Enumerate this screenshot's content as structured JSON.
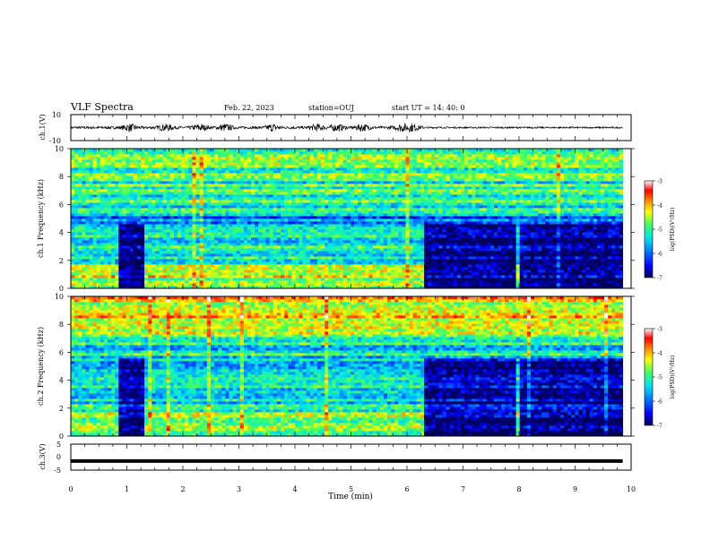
{
  "header": {
    "title": "VLF Spectra",
    "date": "Feb. 22, 2023",
    "station": "station=OUJ",
    "start_ut": "start  UT =   14: 40: 0"
  },
  "chart_data": [
    {
      "type": "line",
      "panel": "waveform-ch1",
      "ylabel": "ch.1(V)",
      "ylim": [
        -10,
        10
      ],
      "yticks": [
        "10",
        "-10"
      ],
      "xlim": [
        0,
        10
      ],
      "note": "broadband waveform, amplitude mostly within about ±2 V with bursts up to about ±4 V"
    },
    {
      "type": "heatmap",
      "panel": "spectrogram-ch1",
      "ylabel": "ch.1\nFrequency  (kHz)",
      "ylim": [
        0,
        10
      ],
      "yticks": [
        "0",
        "2",
        "4",
        "6",
        "8",
        "10"
      ],
      "xlim": [
        0,
        10
      ],
      "colorbar": {
        "label": "log(PSD)(V²/Hz)",
        "range": [
          -7,
          -3
        ],
        "ticks": [
          "-3",
          "-4",
          "-5",
          "-6",
          "-7"
        ],
        "colormap": [
          "#00007a",
          "#0000ff",
          "#0080ff",
          "#00e0ff",
          "#40ff80",
          "#ffff00",
          "#ff8000",
          "#ff0000",
          "#ffffff"
        ]
      },
      "data_end_min": 9.85
    },
    {
      "type": "heatmap",
      "panel": "spectrogram-ch2",
      "ylabel": "ch.2\nFrequency  (kHz)",
      "ylim": [
        0,
        10
      ],
      "yticks": [
        "0",
        "2",
        "4",
        "6",
        "8",
        "10"
      ],
      "xlim": [
        0,
        10
      ],
      "colorbar": {
        "label": "log(PSD)(V²/Hz)",
        "range": [
          -7,
          -3
        ],
        "ticks": [
          "-3",
          "-4",
          "-5",
          "-6",
          "-7"
        ],
        "colormap": [
          "#00007a",
          "#0000ff",
          "#0080ff",
          "#00e0ff",
          "#40ff80",
          "#ffff00",
          "#ff8000",
          "#ff0000",
          "#ffffff"
        ]
      },
      "data_end_min": 9.85
    },
    {
      "type": "line",
      "panel": "waveform-ch3",
      "ylabel": "ch.3(V)",
      "ylim": [
        -5,
        5
      ],
      "yticks": [
        "5",
        "0",
        "-5"
      ],
      "xlim": [
        0,
        10
      ],
      "xticks": [
        "0",
        "1",
        "2",
        "3",
        "4",
        "5",
        "6",
        "7",
        "8",
        "9",
        "10"
      ],
      "xlabel": "Time  (min)",
      "constant_value": -1.5
    }
  ]
}
